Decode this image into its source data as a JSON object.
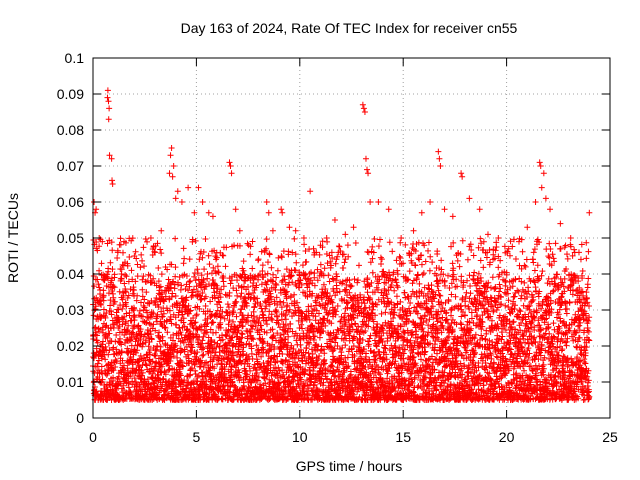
{
  "chart_data": {
    "type": "scatter",
    "title": "Day 163 of 2024, Rate Of TEC Index for receiver cn55",
    "xlabel": "GPS time / hours",
    "ylabel": "ROTI / TECUs",
    "xlim": [
      0,
      25
    ],
    "ylim": [
      0,
      0.1
    ],
    "xticks": [
      0,
      5,
      10,
      15,
      20,
      25
    ],
    "xtick_labels": [
      "0",
      "5",
      "10",
      "15",
      "20",
      "25"
    ],
    "yticks": [
      0,
      0.01,
      0.02,
      0.03,
      0.04,
      0.05,
      0.06,
      0.07,
      0.08,
      0.09,
      0.1
    ],
    "ytick_labels": [
      "0",
      "0.01",
      "0.02",
      "0.03",
      "0.04",
      "0.05",
      "0.06",
      "0.07",
      "0.08",
      "0.09",
      "0.1"
    ],
    "grid": true,
    "marker": "+",
    "color": "#ff0000",
    "x_data_range": [
      0,
      24
    ],
    "typical_range": [
      0.005,
      0.04
    ],
    "series": [
      {
        "name": "ROTI",
        "points": [
          [
            0.05,
            0.06
          ],
          [
            0.1,
            0.057
          ],
          [
            0.15,
            0.058
          ],
          [
            0.3,
            0.05
          ],
          [
            0.45,
            0.049
          ],
          [
            0.7,
            0.089
          ],
          [
            0.72,
            0.091
          ],
          [
            0.75,
            0.088
          ],
          [
            0.78,
            0.086
          ],
          [
            0.76,
            0.083
          ],
          [
            0.8,
            0.073
          ],
          [
            0.9,
            0.072
          ],
          [
            0.92,
            0.066
          ],
          [
            0.95,
            0.065
          ],
          [
            1.2,
            0.046
          ],
          [
            1.5,
            0.049
          ],
          [
            2.0,
            0.045
          ],
          [
            2.8,
            0.05
          ],
          [
            3.0,
            0.046
          ],
          [
            3.3,
            0.052
          ],
          [
            3.7,
            0.068
          ],
          [
            3.75,
            0.073
          ],
          [
            3.8,
            0.075
          ],
          [
            3.85,
            0.067
          ],
          [
            3.9,
            0.07
          ],
          [
            4.0,
            0.061
          ],
          [
            4.1,
            0.063
          ],
          [
            4.3,
            0.06
          ],
          [
            4.6,
            0.064
          ],
          [
            4.9,
            0.057
          ],
          [
            5.1,
            0.064
          ],
          [
            5.3,
            0.06
          ],
          [
            5.6,
            0.057
          ],
          [
            5.8,
            0.056
          ],
          [
            6.6,
            0.071
          ],
          [
            6.65,
            0.07
          ],
          [
            6.7,
            0.068
          ],
          [
            6.9,
            0.058
          ],
          [
            7.1,
            0.052
          ],
          [
            8.4,
            0.06
          ],
          [
            8.5,
            0.057
          ],
          [
            8.7,
            0.052
          ],
          [
            9.1,
            0.058
          ],
          [
            9.15,
            0.057
          ],
          [
            9.5,
            0.053
          ],
          [
            9.8,
            0.052
          ],
          [
            10.2,
            0.05
          ],
          [
            10.5,
            0.063
          ],
          [
            10.8,
            0.046
          ],
          [
            11.0,
            0.048
          ],
          [
            11.3,
            0.05
          ],
          [
            11.7,
            0.055
          ],
          [
            12.2,
            0.051
          ],
          [
            12.6,
            0.053
          ],
          [
            13.05,
            0.087
          ],
          [
            13.1,
            0.086
          ],
          [
            13.15,
            0.085
          ],
          [
            13.2,
            0.072
          ],
          [
            13.25,
            0.069
          ],
          [
            13.3,
            0.068
          ],
          [
            13.4,
            0.06
          ],
          [
            13.8,
            0.06
          ],
          [
            14.3,
            0.058
          ],
          [
            14.9,
            0.05
          ],
          [
            15.5,
            0.052
          ],
          [
            15.9,
            0.057
          ],
          [
            16.3,
            0.06
          ],
          [
            16.7,
            0.074
          ],
          [
            16.75,
            0.072
          ],
          [
            16.8,
            0.07
          ],
          [
            17.0,
            0.058
          ],
          [
            17.4,
            0.056
          ],
          [
            17.8,
            0.068
          ],
          [
            17.85,
            0.067
          ],
          [
            18.2,
            0.061
          ],
          [
            18.7,
            0.058
          ],
          [
            19.1,
            0.051
          ],
          [
            19.6,
            0.05
          ],
          [
            20.1,
            0.047
          ],
          [
            20.6,
            0.049
          ],
          [
            21.0,
            0.053
          ],
          [
            21.4,
            0.06
          ],
          [
            21.6,
            0.071
          ],
          [
            21.65,
            0.07
          ],
          [
            21.7,
            0.064
          ],
          [
            21.8,
            0.068
          ],
          [
            21.9,
            0.061
          ],
          [
            22.1,
            0.058
          ],
          [
            22.6,
            0.054
          ],
          [
            23.1,
            0.05
          ],
          [
            23.5,
            0.046
          ],
          [
            24.0,
            0.057
          ]
        ]
      }
    ]
  }
}
